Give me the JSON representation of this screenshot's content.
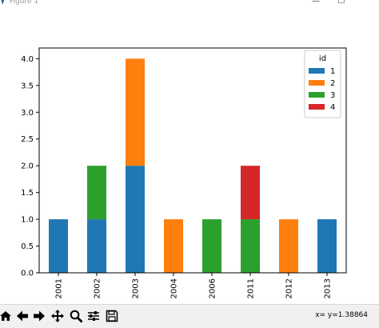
{
  "window": {
    "title": "Figure 1",
    "minimize_glyph": "—",
    "maximize_glyph": "☐"
  },
  "toolbar": {
    "buttons": [
      {
        "icon": "home-icon"
      },
      {
        "icon": "back-arrow-icon"
      },
      {
        "icon": "forward-arrow-icon"
      },
      {
        "icon": "pan-icon"
      },
      {
        "icon": "zoom-icon"
      },
      {
        "icon": "configure-subplots-icon"
      },
      {
        "icon": "save-icon"
      }
    ],
    "coordinates": "x= y=1.38864"
  },
  "chart_data": {
    "type": "bar",
    "stacked": true,
    "categories": [
      "2001",
      "2002",
      "2003",
      "2004",
      "2006",
      "2011",
      "2012",
      "2013"
    ],
    "series": [
      {
        "name": "1",
        "color": "#1f77b4",
        "values": [
          1,
          1,
          2,
          0,
          0,
          0,
          0,
          1
        ]
      },
      {
        "name": "2",
        "color": "#ff7f0e",
        "values": [
          0,
          0,
          2,
          1,
          0,
          0,
          1,
          0
        ]
      },
      {
        "name": "3",
        "color": "#2ca02c",
        "values": [
          0,
          1,
          0,
          0,
          1,
          1,
          0,
          0
        ]
      },
      {
        "name": "4",
        "color": "#d62728",
        "values": [
          0,
          0,
          0,
          0,
          0,
          1,
          0,
          0
        ]
      }
    ],
    "yticks": [
      "0.0",
      "0.5",
      "1.0",
      "1.5",
      "2.0",
      "2.5",
      "3.0",
      "3.5",
      "4.0"
    ],
    "ylim": [
      0,
      4.2
    ],
    "legend_title": "id",
    "legend_position": "upper right",
    "grid": false,
    "xtick_rotation": 90
  }
}
